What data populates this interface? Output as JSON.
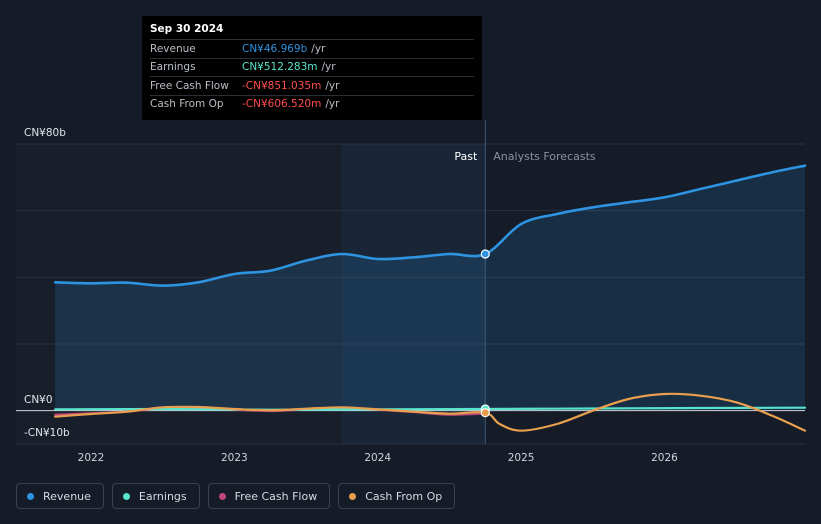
{
  "colors": {
    "revenue": "#2e93e0",
    "earnings": "#58e4cc",
    "fcf": "#c0487a",
    "cfo": "#e8a04e",
    "negative": "#ff4d4d"
  },
  "tooltip": {
    "date": "Sep 30 2024",
    "rows": [
      {
        "label": "Revenue",
        "value": "CN¥46.969b",
        "unit": "/yr",
        "color": "#2e93e0"
      },
      {
        "label": "Earnings",
        "value": "CN¥512.283m",
        "unit": "/yr",
        "color": "#58e4cc"
      },
      {
        "label": "Free Cash Flow",
        "value": "-CN¥851.035m",
        "unit": "/yr",
        "color": "#ff4d4d"
      },
      {
        "label": "Cash From Op",
        "value": "-CN¥606.520m",
        "unit": "/yr",
        "color": "#ff4d4d"
      }
    ]
  },
  "legend": [
    {
      "name": "Revenue",
      "color": "#2e93e0"
    },
    {
      "name": "Earnings",
      "color": "#58e4cc"
    },
    {
      "name": "Free Cash Flow",
      "color": "#c0487a"
    },
    {
      "name": "Cash From Op",
      "color": "#e8a04e"
    }
  ],
  "chart_data": {
    "type": "line",
    "past_label": "Past",
    "forecast_label": "Analysts Forecasts",
    "y_labels": [
      {
        "value": 80,
        "text": "CN¥80b"
      },
      {
        "value": 0,
        "text": "CN¥0"
      },
      {
        "value": -10,
        "text": "-CN¥10b"
      }
    ],
    "ylim": [
      -10,
      80
    ],
    "xlim": [
      2021.7,
      2026.98
    ],
    "x_ticks": [
      {
        "value": 2022,
        "text": "2022"
      },
      {
        "value": 2023,
        "text": "2023"
      },
      {
        "value": 2024,
        "text": "2024"
      },
      {
        "value": 2025,
        "text": "2025"
      },
      {
        "value": 2026,
        "text": "2026"
      }
    ],
    "divider_x": 2024.75,
    "highlight_start_x": 2023.75,
    "grid": true,
    "series": [
      {
        "name": "Revenue",
        "color": "#2e93e0",
        "x": [
          2021.75,
          2022.0,
          2022.25,
          2022.5,
          2022.75,
          2023.0,
          2023.25,
          2023.5,
          2023.75,
          2024.0,
          2024.25,
          2024.5,
          2024.75,
          2025.0,
          2025.25,
          2025.5,
          2025.75,
          2026.0,
          2026.25,
          2026.5,
          2026.75,
          2026.98
        ],
        "y": [
          38.5,
          38.2,
          38.4,
          37.5,
          38.5,
          41.0,
          42.0,
          45.0,
          47.0,
          45.5,
          46.0,
          47.0,
          47.0,
          56.0,
          59.0,
          61.0,
          62.5,
          64.0,
          66.5,
          69.0,
          71.5,
          73.5
        ]
      },
      {
        "name": "Earnings",
        "color": "#58e4cc",
        "x": [
          2021.75,
          2022.5,
          2023.25,
          2024.0,
          2024.75,
          2025.25,
          2025.75,
          2026.25,
          2026.98
        ],
        "y": [
          0.4,
          0.5,
          0.3,
          0.4,
          0.5,
          0.6,
          0.7,
          0.8,
          0.9
        ]
      },
      {
        "name": "Free Cash Flow",
        "color": "#c0487a",
        "x": [
          2021.75,
          2022.0,
          2022.25,
          2022.5,
          2022.75,
          2023.0,
          2023.25,
          2023.5,
          2023.75,
          2024.0,
          2024.25,
          2024.5,
          2024.75
        ],
        "y": [
          -1.2,
          -0.8,
          -0.3,
          0.8,
          0.7,
          0.3,
          -0.1,
          0.4,
          0.9,
          0.3,
          -0.4,
          -1.2,
          -0.85
        ]
      },
      {
        "name": "Cash From Op",
        "color": "#e8a04e",
        "x": [
          2021.75,
          2022.0,
          2022.25,
          2022.5,
          2022.75,
          2023.0,
          2023.25,
          2023.5,
          2023.75,
          2024.0,
          2024.25,
          2024.5,
          2024.75,
          2024.85,
          2025.0,
          2025.25,
          2025.5,
          2025.75,
          2026.0,
          2026.25,
          2026.5,
          2026.75,
          2026.98
        ],
        "y": [
          -1.8,
          -1.0,
          -0.3,
          1.0,
          1.1,
          0.5,
          0.1,
          0.6,
          1.0,
          0.4,
          -0.3,
          -0.9,
          -0.6,
          -4.0,
          -6.0,
          -4.0,
          0.0,
          3.5,
          5.0,
          4.5,
          2.5,
          -1.5,
          -6.0
        ]
      }
    ],
    "markers": [
      {
        "series": "Revenue",
        "x": 2024.75,
        "y": 47.0
      },
      {
        "series": "Earnings",
        "x": 2024.75,
        "y": 0.5
      },
      {
        "series": "Cash From Op",
        "x": 2024.75,
        "y": -0.6
      }
    ]
  }
}
